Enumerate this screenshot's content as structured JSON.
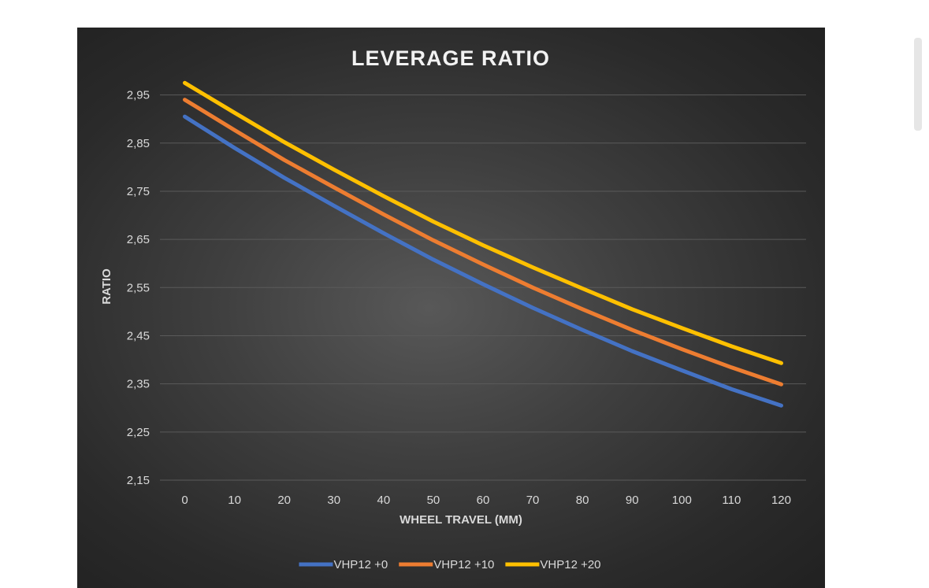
{
  "chart_data": {
    "type": "line",
    "title": "LEVERAGE RATIO",
    "xlabel": "WHEEL TRAVEL (MM)",
    "ylabel": "RATIO",
    "x": [
      0,
      10,
      20,
      30,
      40,
      50,
      60,
      70,
      80,
      90,
      100,
      110,
      120
    ],
    "xlim": [
      -5,
      125
    ],
    "ylim": [
      2.15,
      3.0
    ],
    "yticks": [
      2.15,
      2.25,
      2.35,
      2.45,
      2.55,
      2.65,
      2.75,
      2.85,
      2.95
    ],
    "ytick_labels": [
      "2,15",
      "2,25",
      "2,35",
      "2,45",
      "2,55",
      "2,65",
      "2,75",
      "2,85",
      "2,95"
    ],
    "grid": "horizontal",
    "legend_position": "bottom",
    "series": [
      {
        "name": "VHP12 +0",
        "color": "#4472c4",
        "values": [
          2.905,
          2.84,
          2.778,
          2.72,
          2.663,
          2.608,
          2.557,
          2.508,
          2.462,
          2.418,
          2.378,
          2.339,
          2.305
        ]
      },
      {
        "name": "VHP12 +10",
        "color": "#ed7d31",
        "values": [
          2.94,
          2.877,
          2.815,
          2.758,
          2.702,
          2.648,
          2.598,
          2.55,
          2.505,
          2.462,
          2.422,
          2.384,
          2.349
        ]
      },
      {
        "name": "VHP12 +20",
        "color": "#ffc000",
        "values": [
          2.975,
          2.913,
          2.852,
          2.795,
          2.74,
          2.687,
          2.638,
          2.592,
          2.548,
          2.505,
          2.466,
          2.428,
          2.393
        ]
      }
    ]
  },
  "colors": {
    "gridline": "#5a5a5a",
    "text": "#d9d9d9",
    "title": "#f2f2f2",
    "scrollbar": "#e6e6e6"
  }
}
